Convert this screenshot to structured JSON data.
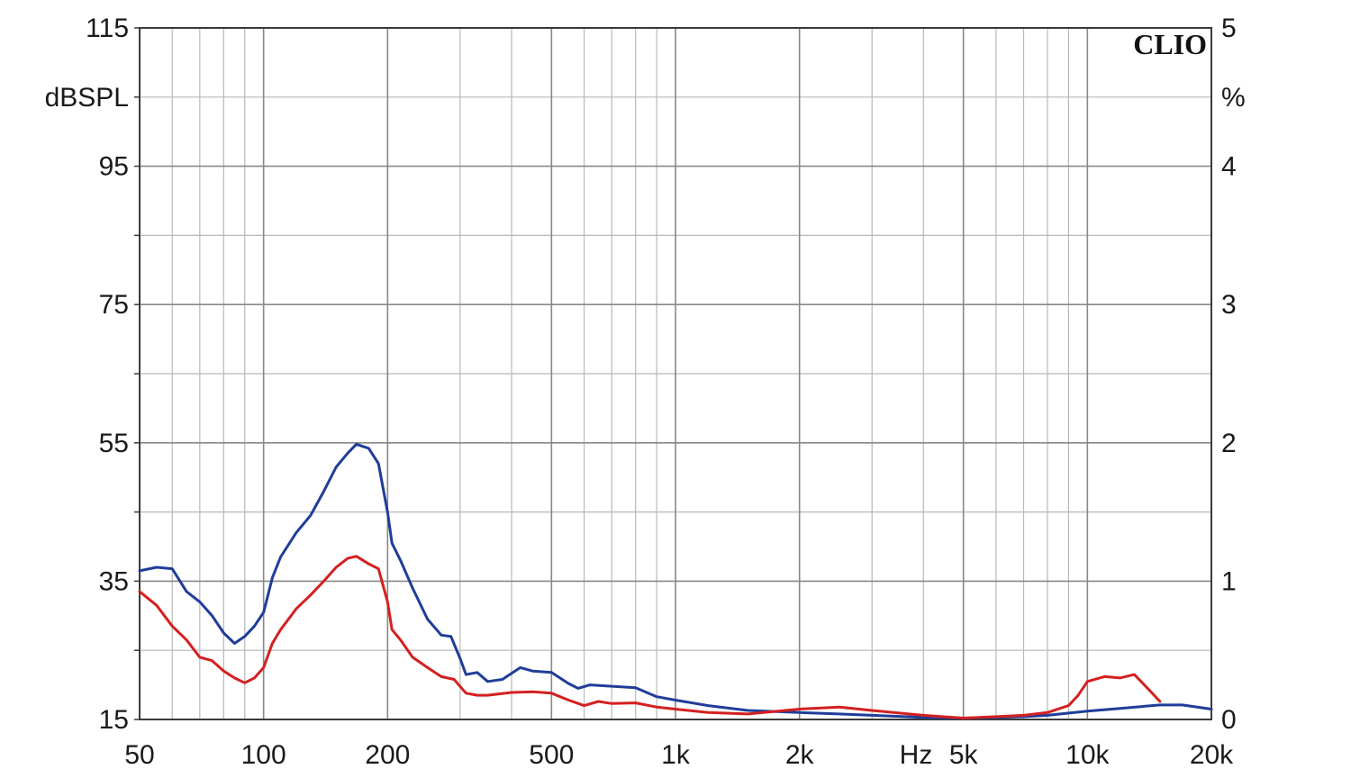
{
  "chart_data": {
    "type": "line",
    "brand": "CLIO",
    "left_unit": "dBSPL",
    "right_unit": "%",
    "x_unit": "Hz",
    "x_scale": "log",
    "xlim": [
      50,
      20000
    ],
    "ylim_left": [
      15,
      115
    ],
    "ylim_right": [
      0,
      5
    ],
    "grid": true,
    "x_ticks": [
      {
        "value": 50,
        "label": "50"
      },
      {
        "value": 100,
        "label": "100"
      },
      {
        "value": 200,
        "label": "200"
      },
      {
        "value": 500,
        "label": "500"
      },
      {
        "value": 1000,
        "label": "1k"
      },
      {
        "value": 2000,
        "label": "2k"
      },
      {
        "value": 5000,
        "label": "5k"
      },
      {
        "value": 10000,
        "label": "10k"
      },
      {
        "value": 20000,
        "label": "20k"
      }
    ],
    "y_left_ticks": [
      {
        "value": 115,
        "label": "115"
      },
      {
        "value": 95,
        "label": "95"
      },
      {
        "value": 75,
        "label": "75"
      },
      {
        "value": 55,
        "label": "55"
      },
      {
        "value": 35,
        "label": "35"
      },
      {
        "value": 15,
        "label": "15"
      }
    ],
    "y_right_ticks": [
      {
        "value": 5,
        "label": "5"
      },
      {
        "value": 4,
        "label": "4"
      },
      {
        "value": 3,
        "label": "3"
      },
      {
        "value": 2,
        "label": "2"
      },
      {
        "value": 1,
        "label": "1"
      },
      {
        "value": 0,
        "label": "0"
      }
    ],
    "series": [
      {
        "color": "#1f3d99",
        "points": [
          [
            50,
            36.5
          ],
          [
            55,
            37
          ],
          [
            60,
            36.8
          ],
          [
            65,
            33.5
          ],
          [
            70,
            32
          ],
          [
            75,
            30
          ],
          [
            80,
            27.5
          ],
          [
            85,
            26
          ],
          [
            90,
            27
          ],
          [
            95,
            28.5
          ],
          [
            100,
            30.5
          ],
          [
            105,
            35.5
          ],
          [
            110,
            38.5
          ],
          [
            120,
            42
          ],
          [
            130,
            44.5
          ],
          [
            140,
            48
          ],
          [
            150,
            51.5
          ],
          [
            160,
            53.5
          ],
          [
            168,
            54.8
          ],
          [
            180,
            54.2
          ],
          [
            190,
            52
          ],
          [
            200,
            45
          ],
          [
            205,
            40.5
          ],
          [
            215,
            38
          ],
          [
            230,
            34
          ],
          [
            250,
            29.5
          ],
          [
            270,
            27.2
          ],
          [
            285,
            27
          ],
          [
            300,
            23.8
          ],
          [
            310,
            21.5
          ],
          [
            330,
            21.8
          ],
          [
            350,
            20.5
          ],
          [
            380,
            20.8
          ],
          [
            420,
            22.5
          ],
          [
            450,
            22
          ],
          [
            500,
            21.8
          ],
          [
            550,
            20.2
          ],
          [
            580,
            19.5
          ],
          [
            620,
            20
          ],
          [
            700,
            19.8
          ],
          [
            800,
            19.6
          ],
          [
            900,
            18.3
          ],
          [
            1000,
            17.8
          ],
          [
            1200,
            17
          ],
          [
            1500,
            16.3
          ],
          [
            2000,
            16
          ],
          [
            2500,
            15.8
          ],
          [
            3000,
            15.6
          ],
          [
            4000,
            15.3
          ],
          [
            5000,
            15.2
          ],
          [
            6000,
            15.3
          ],
          [
            7000,
            15.4
          ],
          [
            8000,
            15.6
          ],
          [
            10000,
            16.2
          ],
          [
            12000,
            16.6
          ],
          [
            15000,
            17.1
          ],
          [
            17000,
            17.1
          ],
          [
            20000,
            16.5
          ]
        ]
      },
      {
        "color": "#d42020",
        "points": [
          [
            50,
            33.5
          ],
          [
            55,
            31.5
          ],
          [
            60,
            28.5
          ],
          [
            65,
            26.5
          ],
          [
            70,
            24
          ],
          [
            75,
            23.5
          ],
          [
            80,
            22
          ],
          [
            85,
            21
          ],
          [
            90,
            20.3
          ],
          [
            95,
            21
          ],
          [
            100,
            22.5
          ],
          [
            105,
            26
          ],
          [
            110,
            28
          ],
          [
            120,
            31
          ],
          [
            130,
            33
          ],
          [
            140,
            35
          ],
          [
            150,
            37
          ],
          [
            160,
            38.3
          ],
          [
            168,
            38.6
          ],
          [
            180,
            37.5
          ],
          [
            190,
            36.8
          ],
          [
            200,
            32
          ],
          [
            205,
            28
          ],
          [
            215,
            26.5
          ],
          [
            230,
            24
          ],
          [
            250,
            22.5
          ],
          [
            270,
            21.2
          ],
          [
            290,
            20.8
          ],
          [
            310,
            18.8
          ],
          [
            330,
            18.5
          ],
          [
            350,
            18.5
          ],
          [
            400,
            18.9
          ],
          [
            450,
            19
          ],
          [
            500,
            18.8
          ],
          [
            550,
            17.8
          ],
          [
            600,
            17
          ],
          [
            650,
            17.6
          ],
          [
            700,
            17.3
          ],
          [
            800,
            17.4
          ],
          [
            900,
            16.8
          ],
          [
            1000,
            16.5
          ],
          [
            1200,
            16
          ],
          [
            1500,
            15.8
          ],
          [
            2000,
            16.5
          ],
          [
            2500,
            16.8
          ],
          [
            3000,
            16.3
          ],
          [
            4000,
            15.6
          ],
          [
            5000,
            15.2
          ],
          [
            6000,
            15.4
          ],
          [
            7000,
            15.6
          ],
          [
            8000,
            16
          ],
          [
            9000,
            17
          ],
          [
            9500,
            18.5
          ],
          [
            10000,
            20.5
          ],
          [
            11000,
            21.2
          ],
          [
            12000,
            21
          ],
          [
            13000,
            21.5
          ],
          [
            14000,
            19.5
          ],
          [
            15000,
            17.6
          ]
        ]
      }
    ]
  }
}
